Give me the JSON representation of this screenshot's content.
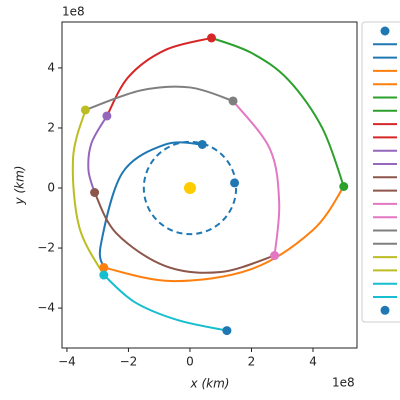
{
  "chart_data": {
    "type": "trajectory",
    "xlabel": "x (km)",
    "ylabel": "y (km)",
    "x_offset_label": "1e8",
    "y_offset_label": "1e8",
    "xlim": [
      -4.16,
      5.43
    ],
    "ylim": [
      -5.33,
      5.53
    ],
    "xticks": [
      {
        "value": -4,
        "label": "−4"
      },
      {
        "value": -2,
        "label": "−2"
      },
      0,
      2,
      4
    ],
    "yticks": [
      {
        "value": -4,
        "label": "−4"
      },
      {
        "value": -2,
        "label": "−2"
      },
      0,
      2,
      4
    ],
    "orbit": {
      "radius": 1.5,
      "color": "#1f77b4"
    },
    "sun": {
      "x": 0,
      "y": 0,
      "color": "#ffcc00"
    },
    "series": [
      {
        "color": "#1f77b4",
        "x": [
          0.4,
          -0.8,
          -2.2,
          -2.9,
          -2.8
        ],
        "values": [
          1.45,
          1.45,
          0.5,
          -1.9,
          -2.65
        ]
      },
      {
        "color": "#ff7f0e",
        "x": [
          -2.8,
          -0.6,
          2.0,
          4.0,
          5.0
        ],
        "values": [
          -2.65,
          -3.1,
          -2.7,
          -1.4,
          0.05
        ]
      },
      {
        "color": "#2ca02c",
        "x": [
          5.0,
          4.3,
          3.2,
          2.0,
          0.7
        ],
        "values": [
          0.05,
          2.0,
          3.6,
          4.5,
          5.0
        ]
      },
      {
        "color": "#d62728",
        "x": [
          0.7,
          -0.8,
          -2.0,
          -2.7
        ],
        "values": [
          5.0,
          4.6,
          3.7,
          2.4
        ]
      },
      {
        "color": "#9467bd",
        "x": [
          -2.7,
          -3.2,
          -3.3,
          -3.1
        ],
        "values": [
          2.4,
          1.5,
          0.6,
          -0.15
        ]
      },
      {
        "color": "#8c564b",
        "x": [
          -3.1,
          -2.4,
          -0.8,
          1.0,
          2.75
        ],
        "values": [
          -0.15,
          -1.5,
          -2.6,
          -2.8,
          -2.25
        ]
      },
      {
        "color": "#e377c2",
        "x": [
          2.75,
          2.9,
          2.6,
          1.4
        ],
        "values": [
          -2.25,
          -0.5,
          1.3,
          2.9
        ]
      },
      {
        "color": "#7f7f7f",
        "x": [
          1.4,
          0.0,
          -1.6,
          -3.4
        ],
        "values": [
          2.9,
          3.35,
          3.25,
          2.6
        ]
      },
      {
        "color": "#bcbd22",
        "x": [
          -3.4,
          -3.8,
          -3.6,
          -2.8
        ],
        "values": [
          2.6,
          1.0,
          -1.3,
          -2.9
        ]
      },
      {
        "color": "#17becf",
        "x": [
          -2.8,
          -1.8,
          -0.4,
          1.2
        ],
        "values": [
          -2.9,
          -3.8,
          -4.4,
          -4.75
        ]
      }
    ],
    "points": {
      "x": [
        0.4,
        1.45,
        -2.8,
        5.0,
        0.7,
        -2.7,
        -3.1,
        2.75,
        1.4,
        -3.4,
        -2.8,
        1.2
      ],
      "values": [
        1.45,
        0.17,
        -2.65,
        0.05,
        5.0,
        2.4,
        -0.15,
        -2.25,
        2.9,
        2.6,
        -2.9,
        -4.75
      ],
      "colors": [
        "#1f77b4",
        "#1f77b4",
        "#ff7f0e",
        "#2ca02c",
        "#d62728",
        "#9467bd",
        "#8c564b",
        "#e377c2",
        "#7f7f7f",
        "#bcbd22",
        "#17becf",
        "#1f77b4"
      ]
    }
  }
}
